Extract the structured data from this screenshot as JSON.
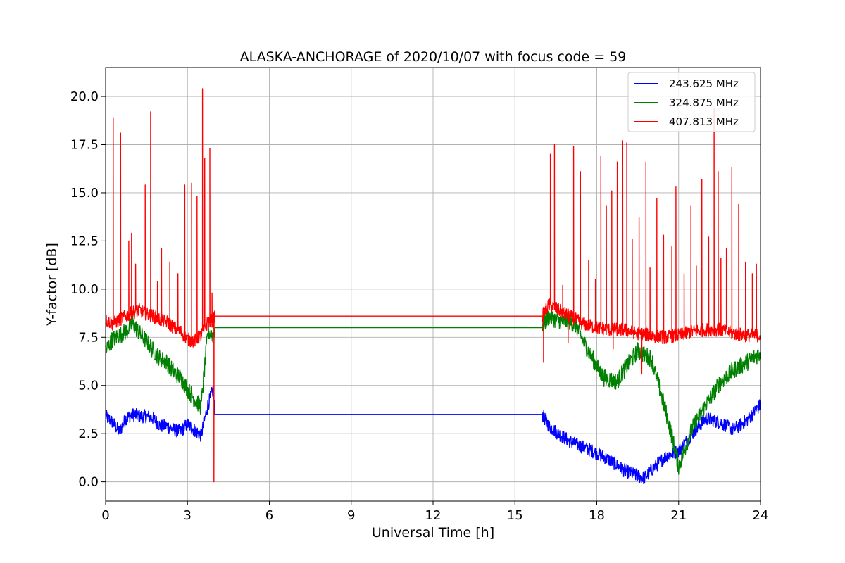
{
  "chart_data": {
    "type": "line",
    "title": "ALASKA-ANCHORAGE of 2020/10/07 with focus code = 59",
    "xlabel": "Universal Time [h]",
    "ylabel": "Y-factor [dB]",
    "xlim": [
      0,
      24
    ],
    "ylim": [
      -1,
      21.5
    ],
    "xticks": [
      0,
      3,
      6,
      9,
      12,
      15,
      18,
      21,
      24
    ],
    "xtick_labels": [
      "0",
      "3",
      "6",
      "9",
      "12",
      "15",
      "18",
      "21",
      "24"
    ],
    "yticks": [
      0,
      2.5,
      5,
      7.5,
      10,
      12.5,
      15,
      17.5,
      20
    ],
    "ytick_labels": [
      "0.0",
      "2.5",
      "5.0",
      "7.5",
      "10.0",
      "12.5",
      "15.0",
      "17.5",
      "20.0"
    ],
    "grid": true,
    "legend_position": "top-right",
    "series": [
      {
        "name": "243.625 MHz",
        "color": "#0000ff",
        "x": [
          0,
          0.25,
          0.5,
          0.75,
          1.0,
          1.25,
          1.5,
          1.75,
          2.0,
          2.25,
          2.5,
          2.75,
          3.0,
          3.25,
          3.5,
          3.75,
          3.95,
          4.0,
          16.0,
          16.25,
          16.5,
          17.0,
          17.5,
          18.0,
          18.5,
          19.0,
          19.5,
          19.75,
          20.0,
          20.5,
          21.0,
          21.5,
          22.0,
          22.5,
          23.0,
          23.5,
          24.0
        ],
        "y": [
          3.4,
          3.1,
          2.6,
          3.3,
          3.5,
          3.4,
          3.4,
          3.3,
          2.9,
          2.9,
          2.7,
          2.6,
          3.0,
          2.7,
          2.4,
          4.0,
          4.8,
          3.5,
          3.5,
          2.9,
          2.6,
          2.1,
          1.8,
          1.5,
          1.1,
          0.6,
          0.3,
          0.2,
          0.6,
          1.3,
          1.6,
          2.5,
          3.3,
          3.1,
          2.7,
          3.2,
          4.0
        ],
        "noise": 0.35
      },
      {
        "name": "324.875 MHz",
        "color": "#008000",
        "x": [
          0,
          0.25,
          0.5,
          0.75,
          1.0,
          1.25,
          1.5,
          1.75,
          2.0,
          2.25,
          2.5,
          2.75,
          3.0,
          3.25,
          3.5,
          3.75,
          3.95,
          4.0,
          16.0,
          16.25,
          16.5,
          17.0,
          17.25,
          17.5,
          18.0,
          18.25,
          18.5,
          18.75,
          19.0,
          19.5,
          19.75,
          20.0,
          20.5,
          20.75,
          21.0,
          21.25,
          21.5,
          22.0,
          22.5,
          23.0,
          23.5,
          24.0
        ],
        "y": [
          6.8,
          7.4,
          7.6,
          7.8,
          8.2,
          7.7,
          7.3,
          6.8,
          6.4,
          6.2,
          5.7,
          5.4,
          4.8,
          4.3,
          3.9,
          7.8,
          7.6,
          8.0,
          8.0,
          8.6,
          8.4,
          8.3,
          8.1,
          7.3,
          6.0,
          5.4,
          5.3,
          5.2,
          5.8,
          6.8,
          6.6,
          6.4,
          3.8,
          2.4,
          0.8,
          1.8,
          2.8,
          4.0,
          5.1,
          5.8,
          6.2,
          6.7
        ],
        "noise": 0.45
      },
      {
        "name": "407.813 MHz",
        "color": "#ff0000",
        "x": [
          0,
          0.25,
          0.5,
          0.75,
          1.0,
          1.25,
          1.5,
          1.75,
          2.0,
          2.25,
          2.5,
          2.75,
          3.0,
          3.25,
          3.5,
          3.75,
          3.95,
          4.0,
          16.0,
          16.25,
          16.5,
          17.0,
          17.5,
          18.0,
          18.5,
          19.0,
          19.5,
          20.0,
          20.5,
          21.0,
          21.5,
          22.0,
          22.5,
          23.0,
          23.5,
          24.0
        ],
        "y": [
          8.4,
          8.2,
          8.4,
          8.6,
          8.8,
          8.9,
          8.7,
          8.6,
          8.4,
          8.3,
          8.0,
          7.8,
          7.4,
          7.3,
          7.6,
          8.3,
          8.4,
          8.6,
          8.6,
          9.2,
          9.0,
          8.6,
          8.2,
          8.0,
          7.9,
          7.9,
          7.7,
          7.6,
          7.5,
          7.6,
          7.8,
          7.9,
          7.9,
          7.7,
          7.6,
          7.6
        ],
        "noise": 0.35,
        "spikes": [
          [
            0.28,
            18.9
          ],
          [
            0.55,
            18.1
          ],
          [
            0.85,
            12.5
          ],
          [
            0.95,
            12.9
          ],
          [
            1.1,
            11.3
          ],
          [
            1.45,
            15.4
          ],
          [
            1.65,
            19.2
          ],
          [
            1.9,
            10.4
          ],
          [
            2.05,
            12.1
          ],
          [
            2.35,
            11.4
          ],
          [
            2.65,
            10.8
          ],
          [
            2.9,
            15.4
          ],
          [
            3.15,
            15.5
          ],
          [
            3.35,
            14.8
          ],
          [
            3.55,
            20.4
          ],
          [
            3.63,
            16.8
          ],
          [
            3.82,
            17.3
          ],
          [
            3.9,
            9.8
          ],
          [
            3.97,
            0.0
          ],
          [
            16.05,
            6.2
          ],
          [
            16.3,
            17.0
          ],
          [
            16.45,
            17.5
          ],
          [
            16.75,
            10.2
          ],
          [
            16.95,
            7.2
          ],
          [
            17.15,
            17.4
          ],
          [
            17.4,
            16.1
          ],
          [
            17.7,
            11.5
          ],
          [
            17.95,
            10.5
          ],
          [
            18.15,
            16.9
          ],
          [
            18.35,
            14.3
          ],
          [
            18.55,
            15.1
          ],
          [
            18.6,
            6.9
          ],
          [
            18.75,
            16.6
          ],
          [
            18.95,
            17.7
          ],
          [
            19.1,
            17.6
          ],
          [
            19.3,
            12.6
          ],
          [
            19.55,
            13.7
          ],
          [
            19.65,
            5.6
          ],
          [
            19.8,
            16.6
          ],
          [
            19.95,
            11.1
          ],
          [
            20.2,
            14.7
          ],
          [
            20.45,
            12.8
          ],
          [
            20.75,
            12.2
          ],
          [
            20.9,
            15.3
          ],
          [
            21.2,
            10.8
          ],
          [
            21.45,
            14.3
          ],
          [
            21.65,
            11.2
          ],
          [
            21.85,
            15.7
          ],
          [
            22.1,
            12.7
          ],
          [
            22.3,
            19.4
          ],
          [
            22.45,
            16.1
          ],
          [
            22.55,
            11.6
          ],
          [
            22.75,
            12.1
          ],
          [
            22.95,
            16.3
          ],
          [
            23.2,
            14.4
          ],
          [
            23.45,
            11.4
          ],
          [
            23.7,
            10.8
          ],
          [
            23.85,
            11.3
          ]
        ]
      }
    ]
  }
}
